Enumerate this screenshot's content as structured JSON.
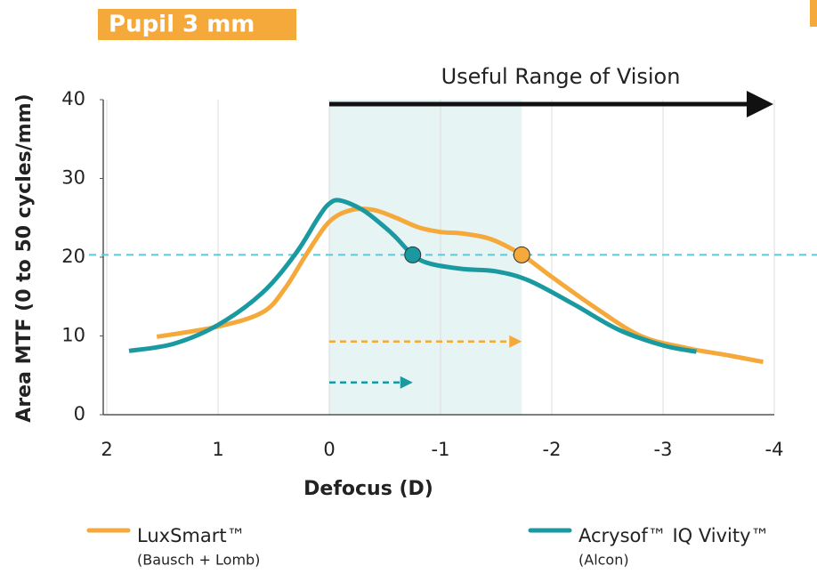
{
  "chart_data": {
    "type": "line",
    "title": "Pupil 3 mm",
    "annotation": "Useful Range of Vision",
    "xlabel": "Defocus (D)",
    "ylabel": "Area MTF (0 to 50 cycles/mm)",
    "xlim": [
      2,
      -4
    ],
    "ylim": [
      0,
      40
    ],
    "xticks": [
      2,
      1,
      0,
      -1,
      -2,
      -3,
      -4
    ],
    "yticks": [
      0,
      10,
      20,
      30,
      40
    ],
    "grid": true,
    "threshold": 20.3,
    "highlight_range": [
      0,
      -1.73
    ],
    "useful_range": [
      0,
      -4
    ],
    "series": [
      {
        "name": "LuxSmart™",
        "manufacturer": "(Bausch + Lomb)",
        "color": "#f5a93b",
        "x": [
          1.55,
          1.0,
          0.6,
          0.4,
          0.2,
          0,
          -0.2,
          -0.4,
          -0.6,
          -0.8,
          -1.0,
          -1.2,
          -1.45,
          -1.73,
          -2.0,
          -2.4,
          -2.8,
          -3.2,
          -3.6,
          -3.9
        ],
        "values": [
          9.9,
          11.2,
          13,
          16,
          20.5,
          24.5,
          26,
          26,
          25,
          23.8,
          23.2,
          23,
          22.3,
          20.3,
          17.5,
          13.5,
          10,
          8.5,
          7.5,
          6.7
        ]
      },
      {
        "name": "Acrysof™ IQ Vivity™",
        "manufacturer": "(Alcon)",
        "color": "#1a9aa0",
        "x": [
          1.8,
          1.4,
          1.0,
          0.6,
          0.3,
          0.1,
          0,
          -0.1,
          -0.3,
          -0.5,
          -0.6,
          -0.75,
          -0.9,
          -1.2,
          -1.5,
          -1.8,
          -2.2,
          -2.6,
          -3.0,
          -3.3
        ],
        "values": [
          8.1,
          9,
          11.4,
          15.5,
          20.5,
          25,
          26.8,
          27.2,
          26,
          23.8,
          22.5,
          20.3,
          19.2,
          18.5,
          18.2,
          17,
          14,
          10.8,
          8.8,
          8.0
        ]
      }
    ],
    "points": [
      {
        "color": "#1a9aa0",
        "x": -0.75,
        "y": 20.3
      },
      {
        "color": "#f5a93b",
        "x": -1.73,
        "y": 20.3
      }
    ],
    "range_arrows": [
      {
        "color": "#f5a93b",
        "from": 0,
        "to": -1.73,
        "y": 9.3
      },
      {
        "color": "#1a9aa0",
        "from": 0,
        "to": -0.75,
        "y": 4.1
      }
    ]
  }
}
